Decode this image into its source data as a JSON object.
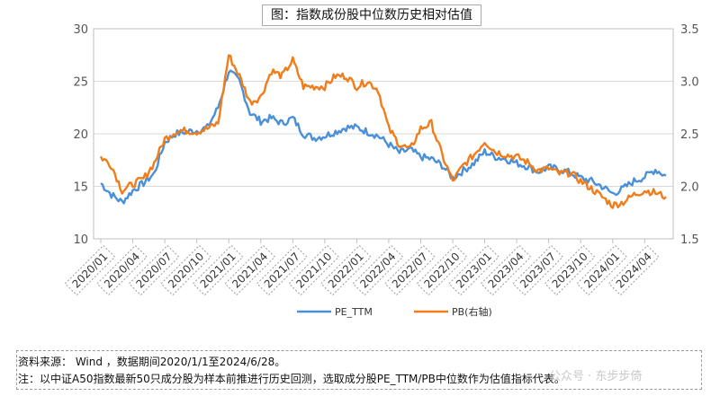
{
  "title": "图：指数成份股中位数历史相对估值",
  "footnote": {
    "source": "资料来源： Wind ，数据期间2020/1/1至2024/6/28。",
    "note": "注：以中证A50指数最新50只成分股为样本前推进行历史回测，选取成分股PE_TTM/PB中位数作为估值指标代表。"
  },
  "watermark": "公众号 · 东步步倚",
  "colors": {
    "pe": "#4a90d9",
    "pb": "#f07d1a",
    "grid": "#d9d9d9"
  },
  "chart_data": {
    "type": "line",
    "title": "图：指数成份股中位数历史相对估值",
    "x_ticks": [
      "2020/01",
      "2020/04",
      "2020/07",
      "2020/10",
      "2021/01",
      "2021/04",
      "2021/07",
      "2021/10",
      "2022/01",
      "2022/04",
      "2022/07",
      "2022/10",
      "2023/01",
      "2023/04",
      "2023/07",
      "2023/10",
      "2024/01",
      "2024/04"
    ],
    "x": [
      "2020/01",
      "2020/02",
      "2020/03",
      "2020/04",
      "2020/05",
      "2020/06",
      "2020/07",
      "2020/08",
      "2020/09",
      "2020/10",
      "2020/11",
      "2020/12",
      "2021/01",
      "2021/02",
      "2021/03",
      "2021/04",
      "2021/05",
      "2021/06",
      "2021/07",
      "2021/08",
      "2021/09",
      "2021/10",
      "2021/11",
      "2021/12",
      "2022/01",
      "2022/02",
      "2022/03",
      "2022/04",
      "2022/05",
      "2022/06",
      "2022/07",
      "2022/08",
      "2022/09",
      "2022/10",
      "2022/11",
      "2022/12",
      "2023/01",
      "2023/02",
      "2023/03",
      "2023/04",
      "2023/05",
      "2023/06",
      "2023/07",
      "2023/08",
      "2023/09",
      "2023/10",
      "2023/11",
      "2023/12",
      "2024/01",
      "2024/02",
      "2024/03",
      "2024/04",
      "2024/05",
      "2024/06"
    ],
    "y_left": {
      "ticks": [
        10,
        15,
        20,
        25,
        30
      ],
      "ylim": [
        10,
        30
      ]
    },
    "y_right": {
      "ticks": [
        "1.5",
        "2.0",
        "2.5",
        "3.0",
        "3.5"
      ],
      "ylim": [
        1.5,
        3.5
      ]
    },
    "series": [
      {
        "name": "PE_TTM",
        "axis": "left",
        "values": [
          15.3,
          14.2,
          13.5,
          14.6,
          15.3,
          16.2,
          19.2,
          20.0,
          20.2,
          20.3,
          20.6,
          22.5,
          26.0,
          25.0,
          22.0,
          21.2,
          21.5,
          21.0,
          21.5,
          20.0,
          19.6,
          19.8,
          20.2,
          20.6,
          20.6,
          20.2,
          19.8,
          19.0,
          18.2,
          18.5,
          17.8,
          17.6,
          17.0,
          15.8,
          16.5,
          17.2,
          18.3,
          17.8,
          17.6,
          17.2,
          16.9,
          16.4,
          16.8,
          16.6,
          16.3,
          15.8,
          15.5,
          15.0,
          14.3,
          14.8,
          15.5,
          15.9,
          16.6,
          16.0
        ]
      },
      {
        "name": "PB(右轴)",
        "axis": "right",
        "values": [
          2.28,
          2.2,
          1.96,
          2.02,
          2.07,
          2.22,
          2.45,
          2.52,
          2.53,
          2.52,
          2.55,
          2.6,
          3.25,
          3.05,
          2.8,
          2.85,
          3.1,
          3.05,
          3.2,
          2.95,
          2.95,
          2.95,
          3.05,
          3.05,
          2.95,
          3.0,
          2.92,
          2.55,
          2.4,
          2.35,
          2.55,
          2.6,
          2.3,
          2.05,
          2.2,
          2.3,
          2.43,
          2.33,
          2.3,
          2.28,
          2.23,
          2.15,
          2.17,
          2.12,
          2.13,
          2.05,
          1.98,
          1.9,
          1.82,
          1.85,
          1.92,
          1.96,
          1.94,
          1.9
        ]
      }
    ],
    "legend_position": "bottom"
  }
}
